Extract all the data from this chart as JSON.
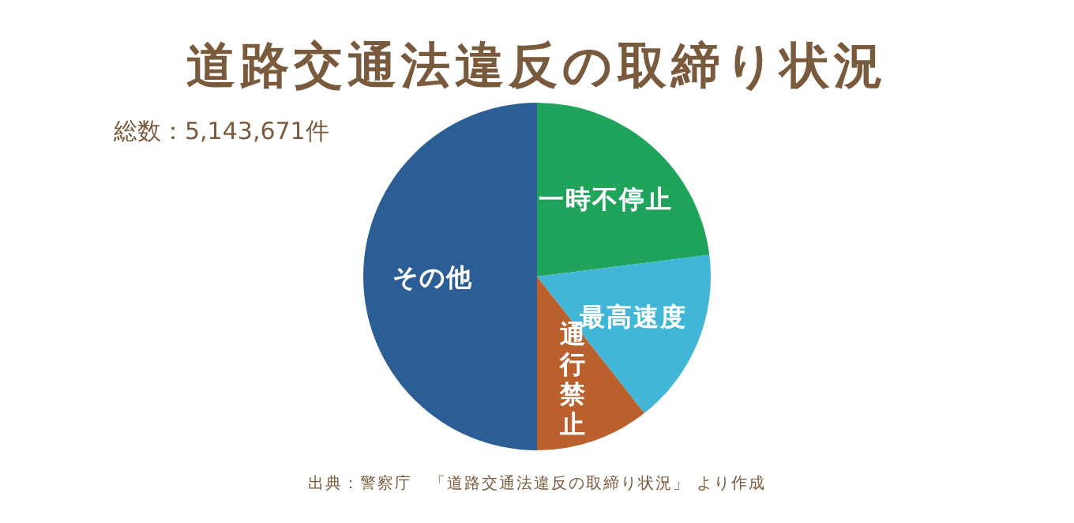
{
  "chart_data": {
    "type": "pie",
    "title": "道路交通法違反の取締り状況",
    "subtitle": "総数：5,143,671件",
    "categories": [
      "一時不停止",
      "最高速度",
      "通行禁止",
      "その他"
    ],
    "values": [
      23,
      16.4,
      10.6,
      50
    ],
    "colors": [
      "#20a35a",
      "#41b6d6",
      "#b9602d",
      "#2c5e96"
    ],
    "annotations": [
      "出典：警察庁　「道路交通法違反の取締り状況」 より作成"
    ]
  }
}
